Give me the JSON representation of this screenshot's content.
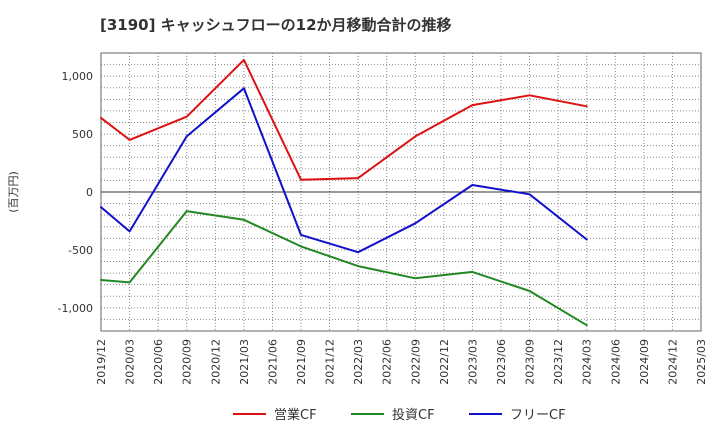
{
  "chart_data": {
    "type": "line",
    "title": "[3190]  キャッシュフローの12か月移動合計の推移",
    "ylabel": "(百万円)",
    "xlabel": "",
    "x": [
      "2019/12",
      "2020/03",
      "2020/06",
      "2020/09",
      "2020/12",
      "2021/03",
      "2021/06",
      "2021/09",
      "2021/12",
      "2022/03",
      "2022/06",
      "2022/09",
      "2022/12",
      "2023/03",
      "2023/06",
      "2023/09",
      "2023/12",
      "2024/03",
      "2024/06",
      "2024/09",
      "2024/12",
      "2025/03"
    ],
    "ylim": [
      -1200,
      1200
    ],
    "yticks": [
      -1000,
      -500,
      0,
      500,
      1000
    ],
    "ytick_labels": [
      "-1,000",
      "-500",
      "0",
      "500",
      "1,000"
    ],
    "grid": true,
    "legend": "bottom",
    "series": [
      {
        "name": "営業CF",
        "color": "#dd1111",
        "points": [
          [
            "2019/12",
            640
          ],
          [
            "2020/03",
            450
          ],
          [
            "2020/09",
            650
          ],
          [
            "2021/03",
            1140
          ],
          [
            "2021/09",
            105
          ],
          [
            "2022/03",
            120
          ],
          [
            "2022/09",
            480
          ],
          [
            "2023/03",
            750
          ],
          [
            "2023/09",
            835
          ],
          [
            "2024/03",
            740
          ]
        ]
      },
      {
        "name": "投資CF",
        "color": "#228822",
        "points": [
          [
            "2019/12",
            -760
          ],
          [
            "2020/03",
            -780
          ],
          [
            "2020/09",
            -165
          ],
          [
            "2021/03",
            -240
          ],
          [
            "2021/09",
            -470
          ],
          [
            "2022/03",
            -640
          ],
          [
            "2022/09",
            -745
          ],
          [
            "2023/03",
            -690
          ],
          [
            "2023/09",
            -855
          ],
          [
            "2024/03",
            -1150
          ]
        ]
      },
      {
        "name": "フリーCF",
        "color": "#1111cc",
        "points": [
          [
            "2019/12",
            -130
          ],
          [
            "2020/03",
            -340
          ],
          [
            "2020/09",
            480
          ],
          [
            "2021/03",
            895
          ],
          [
            "2021/09",
            -370
          ],
          [
            "2022/03",
            -520
          ],
          [
            "2022/09",
            -270
          ],
          [
            "2023/03",
            60
          ],
          [
            "2023/09",
            -20
          ],
          [
            "2024/03",
            -410
          ]
        ]
      }
    ]
  }
}
